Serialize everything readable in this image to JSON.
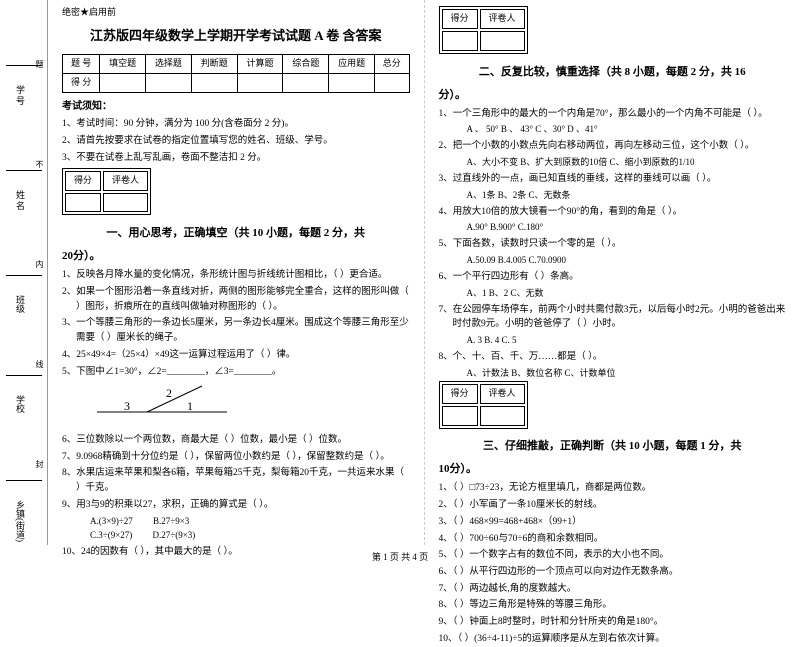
{
  "gutter": {
    "labels": [
      "乡镇(街道)",
      "学校",
      "班级",
      "姓 名",
      "学 号"
    ],
    "marks": [
      "封",
      "线",
      "内",
      "不",
      "题"
    ]
  },
  "secret": "绝密★启用前",
  "title": "江苏版四年级数学上学期开学考试试题 A 卷  含答案",
  "score_table": {
    "header": [
      "题  号",
      "填空题",
      "选择题",
      "判断题",
      "计算题",
      "综合题",
      "应用题",
      "总分"
    ],
    "row": [
      "得  分",
      "",
      "",
      "",
      "",
      "",
      "",
      ""
    ]
  },
  "notice": {
    "title": "考试须知：",
    "items": [
      "1、考试时间：90 分钟，满分为 100 分(含卷面分 2 分)。",
      "2、请首先按要求在试卷的指定位置填写您的姓名、班级、学号。",
      "3、不要在试卷上乱写乱画，卷面不整洁扣 2 分。"
    ]
  },
  "scorebox": {
    "c1": "得分",
    "c2": "评卷人"
  },
  "section1": {
    "title": "一、用心思考，正确填空（共 10 小题，每题 2 分，共",
    "cont": "20分）。",
    "items": [
      "1、反映各月降水量的变化情况，条形统计图与折线统计图相比，（      ）更合适。",
      "2、如果一个图形沿着一条直线对折，两侧的图形能够完全重合，这样的图形叫做（      ）图形，折痕所在的直线叫做轴对称图形的（      ）。",
      "3、一个等腰三角形的一条边长5厘米，另一条边长4厘米。围成这个等腰三角形至少需要（      ）厘米长的绳子。",
      "4、25×49×4=（25×4）×49这一运算过程运用了（      ）律。",
      "5、下图中∠1=30°，∠2=________，∠3=________。",
      "6、三位数除以一个两位数，商最大是（      ）位数，最小是（      ）位数。",
      "7、9.0968精确到十分位约是（      ），保留两位小数约是（      ），保留整数约是（      ）。",
      "8、水果店运来苹果和梨各6箱，苹果每箱25千克，梨每箱20千克，一共运来水果（      ）千克。",
      "9、用3与9的积乘以27，求积，正确的算式是（      ）。",
      "10、24的因数有（              ），其中最大的是（      ）。"
    ],
    "opts9": {
      "a": "A.(3×9)÷27",
      "b": "B.27÷9×3",
      "c": "C.3÷(9×27)",
      "d": "D.27÷(9×3)"
    },
    "angle_svg": {
      "labels": [
        "3",
        "2",
        "1"
      ],
      "stroke": "#000"
    }
  },
  "section2": {
    "title": "二、反复比较，慎重选择（共 8 小题，每题 2 分，共 16",
    "cont": "分）。",
    "items": [
      {
        "q": "1、一个三角形中的最大的一个内角是70°，那么最小的一个内角不可能是（      ）。",
        "opts": "A 、 50°      B  、 43°      C  、30°      D  、41°"
      },
      {
        "q": "2、把一个小数的小数点先向右移动两位，再向左移动三位，这个小数（      ）。",
        "opts": "A、大小不变      B、扩大到原数的10倍      C、缩小到原数的1/10"
      },
      {
        "q": "3、过直线外的一点，画已知直线的垂线，这样的垂线可以画（      ）。",
        "opts": "A、1条      B、2条      C、无数条"
      },
      {
        "q": "4、用放大10倍的放大镜看一个90°的角，看到的角是（      ）。",
        "opts": "A.90°       B.900°       C.180°"
      },
      {
        "q": "5、下面各数，读数时只读一个零的是（      ）。",
        "opts": "A.50.09      B.4.005      C.70.0900"
      },
      {
        "q": "6、一个平行四边形有（      ）条高。",
        "opts": "A、1      B、2      C、无数"
      },
      {
        "q": "7、在公园停车场停车，前两个小时共需付款3元，以后每小时2元。小明的爸爸出来时付款9元。小明的爸爸停了（      ）小时。",
        "opts": "A. 3      B. 4      C. 5"
      },
      {
        "q": "8、个、十、百、千、万……都是（      ）。",
        "opts": "A、计数法      B、数位名称      C、计数单位"
      }
    ]
  },
  "section3": {
    "title": "三、仔细推敲，正确判断（共 10 小题，每题 1 分，共",
    "cont": "10分）。",
    "items": [
      "1、（    ）□73÷23，无论方框里填几，商都是两位数。",
      "2、（    ）小军画了一条10厘米长的射线。",
      "3、（    ）468×99=468+468×（99+1）",
      "4、（    ）700÷60与70÷6的商和余数相同。",
      "5、（    ）一个数字占有的数位不同，表示的大小也不同。",
      "6、（    ）从平行四边形的一个顶点可以向对边作无数条高。",
      "7、（    ）两边越长,角的度数越大。",
      "8、（    ）等边三角形是特殊的等腰三角形。",
      "9、（    ）钟面上8时整时，时针和分针所夹的角是180°。",
      "10、（    ）(36÷4-11)÷5的运算顺序是从左到右依次计算。"
    ]
  },
  "footer": "第 1 页  共 4 页"
}
